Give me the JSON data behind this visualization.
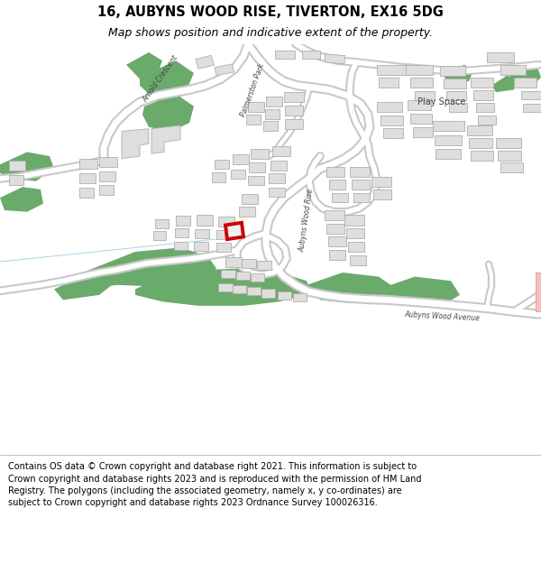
{
  "title_line1": "16, AUBYNS WOOD RISE, TIVERTON, EX16 5DG",
  "title_line2": "Map shows position and indicative extent of the property.",
  "footer_text": "Contains OS data © Crown copyright and database right 2021. This information is subject to Crown copyright and database rights 2023 and is reproduced with the permission of HM Land Registry. The polygons (including the associated geometry, namely x, y co-ordinates) are subject to Crown copyright and database rights 2023 Ordnance Survey 100026316.",
  "map_bg": "#ffffff",
  "road_outline": "#c8c8c8",
  "building_fill": "#e0dedd",
  "building_outline": "#b0aeac",
  "green_color": "#6aaa6a",
  "highlight_color": "#cc0000",
  "pink_color": "#f5c0c0",
  "title_fontsize": 10.5,
  "subtitle_fontsize": 9,
  "footer_fontsize": 7,
  "label_color": "#444444"
}
